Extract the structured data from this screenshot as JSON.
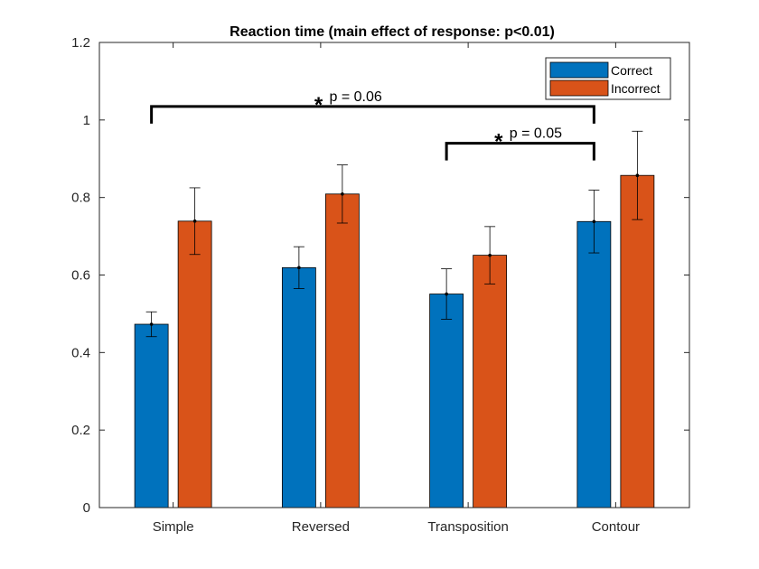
{
  "chart_data": {
    "type": "bar",
    "title": "Reaction time (main effect of response: p<0.01)",
    "xlabel": "",
    "ylabel": "",
    "categories": [
      "Simple",
      "Reversed",
      "Transposition",
      "Contour"
    ],
    "ylim": [
      0,
      1.2
    ],
    "yticks": [
      "0",
      "0.2",
      "0.4",
      "0.6",
      "0.8",
      "1",
      "1.2"
    ],
    "grid": false,
    "legend_position": "top-right",
    "series": [
      {
        "name": "Correct",
        "color": "#0072BD",
        "values": [
          0.473,
          0.619,
          0.551,
          0.738
        ],
        "errors": [
          0.032,
          0.054,
          0.065,
          0.081
        ]
      },
      {
        "name": "Incorrect",
        "color": "#D95319",
        "values": [
          0.739,
          0.809,
          0.651,
          0.857
        ],
        "errors": [
          0.086,
          0.075,
          0.074,
          0.114
        ]
      }
    ],
    "annotations": [
      {
        "star": "*",
        "text": "p = 0.06",
        "from_category": 0,
        "from_series": 0,
        "to_category": 3,
        "to_series": 0,
        "y": 1.035
      },
      {
        "star": "*",
        "text": "p = 0.05",
        "from_category": 2,
        "from_series": 0,
        "to_category": 3,
        "to_series": 0,
        "y": 0.94
      }
    ]
  }
}
